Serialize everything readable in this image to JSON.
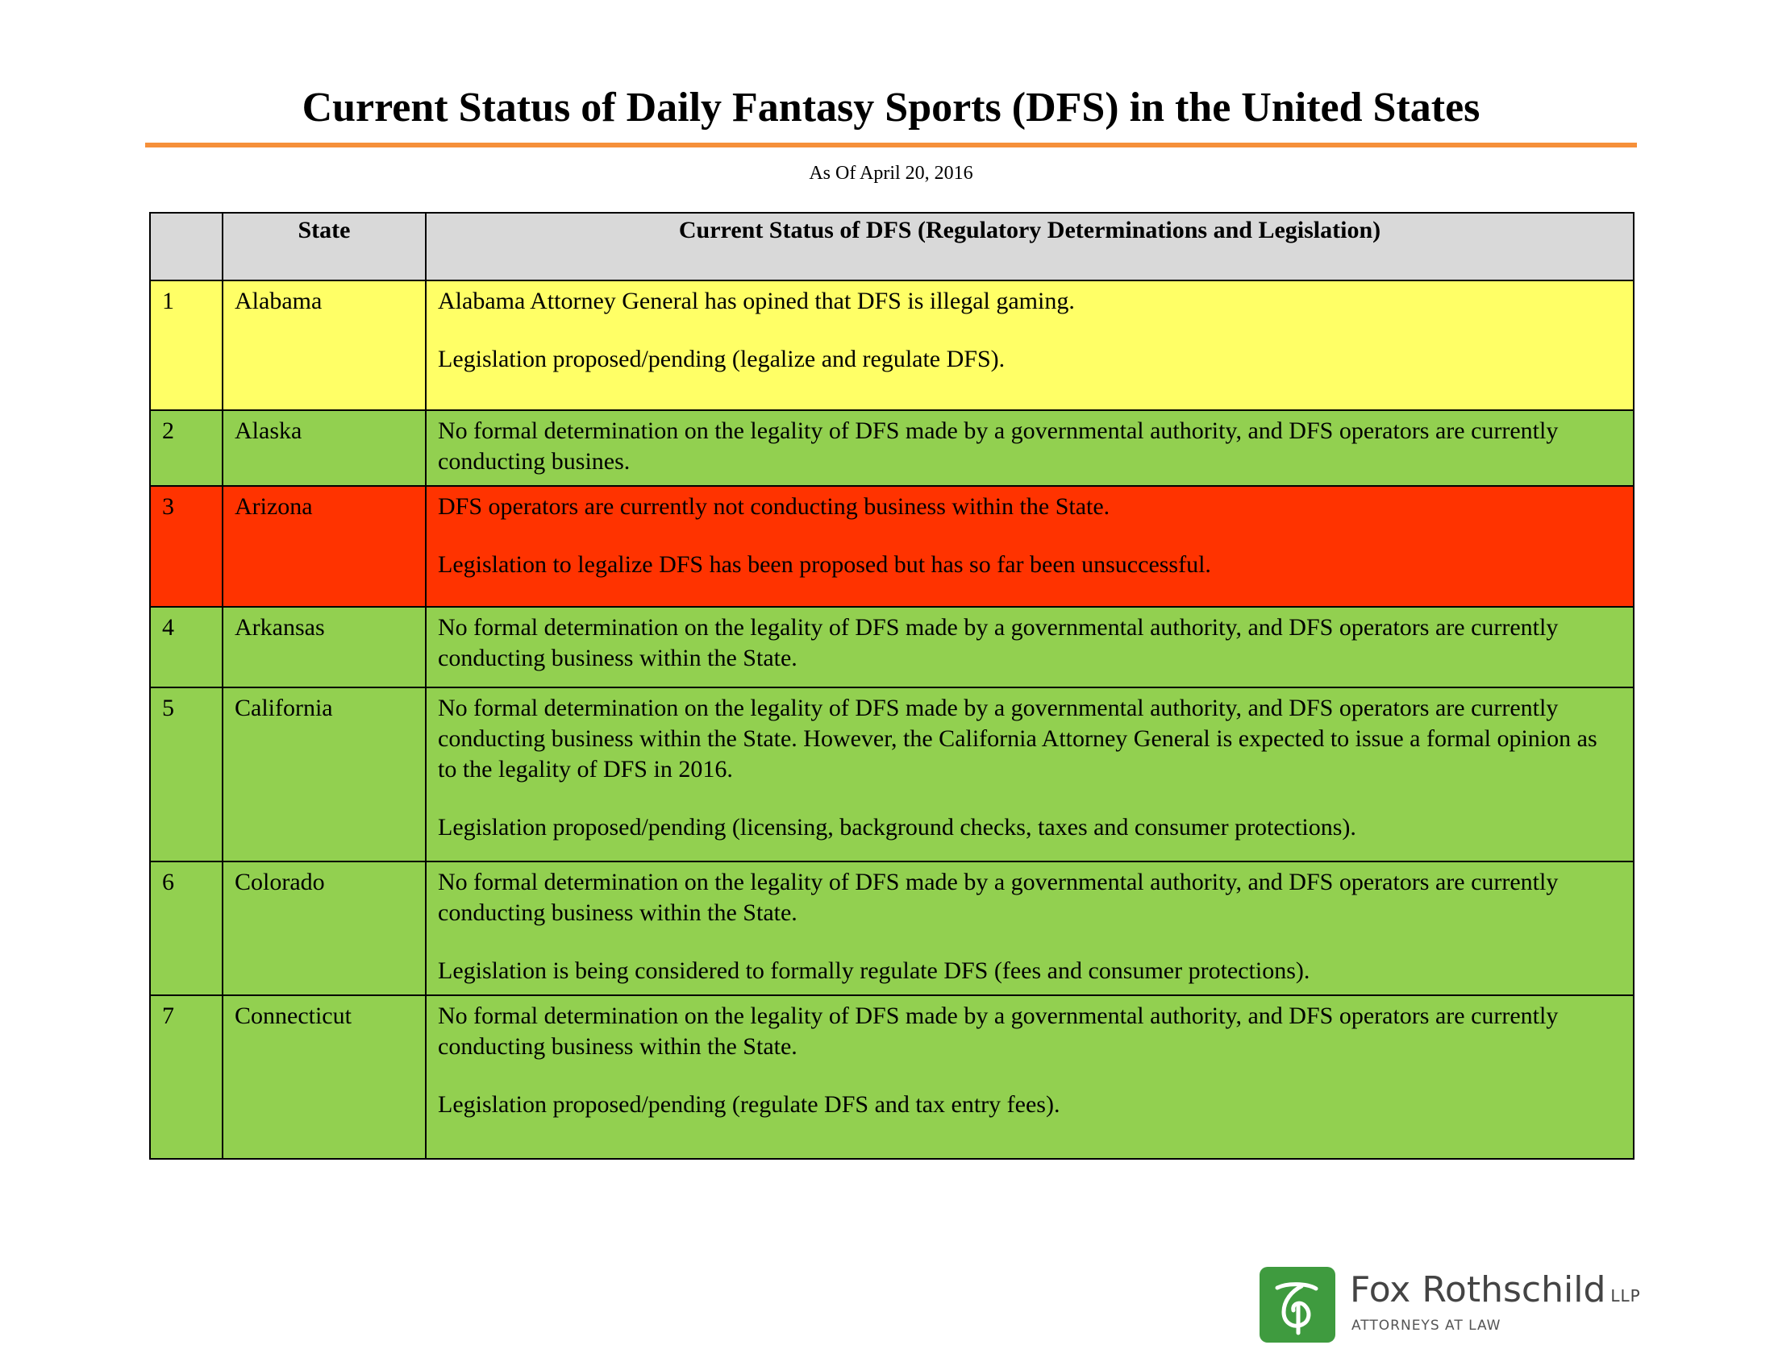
{
  "document": {
    "title": "Current Status of Daily Fantasy Sports (DFS) in the United States",
    "subtitle": "As Of April 20, 2016"
  },
  "colors": {
    "accent_rule": "#f6903a",
    "header_bg": "#d9d9d9",
    "yellow": "#ffff66",
    "green": "#92d050",
    "red": "#ff3300",
    "logo_green": "#3f9b3f"
  },
  "table": {
    "headers": [
      "",
      "State",
      "Current Status of DFS (Regulatory Determinations and Legislation)"
    ],
    "rows": [
      {
        "num": "1",
        "state": "Alabama",
        "color": "yellow",
        "paras": [
          "Alabama Attorney General has opined that DFS is illegal gaming.",
          "Legislation proposed/pending (legalize and regulate DFS)."
        ]
      },
      {
        "num": "2",
        "state": "Alaska",
        "color": "green",
        "paras": [
          "No formal determination on the legality of DFS made by a governmental authority, and DFS operators are currently conducting busines."
        ]
      },
      {
        "num": "3",
        "state": "Arizona",
        "color": "red",
        "paras": [
          "DFS operators are currently not conducting business within the State.",
          "Legislation to legalize DFS has been proposed but has so far been unsuccessful."
        ]
      },
      {
        "num": "4",
        "state": "Arkansas",
        "color": "green",
        "paras": [
          "No formal determination on the legality of DFS made by a governmental authority, and DFS operators are currently conducting business within the State."
        ]
      },
      {
        "num": "5",
        "state": "California",
        "color": "green",
        "paras": [
          "No formal determination on the legality of DFS made by a governmental authority, and DFS operators are currently conducting business within the State.  However, the California Attorney General is expected to issue a formal opinion as to the legality of DFS in 2016.",
          "Legislation proposed/pending (licensing, background checks, taxes and consumer protections)."
        ]
      },
      {
        "num": "6",
        "state": "Colorado",
        "color": "green",
        "paras": [
          "No formal determination on the legality of DFS made by a governmental authority, and DFS operators are currently conducting business within the State.",
          "Legislation is being considered to formally regulate DFS (fees and consumer protections)."
        ]
      },
      {
        "num": "7",
        "state": "Connecticut",
        "color": "green",
        "paras": [
          "No formal determination on the legality of DFS made by a governmental authority, and DFS operators are currently conducting business within the State.",
          "Legislation proposed/pending (regulate DFS and tax entry fees)."
        ]
      }
    ]
  },
  "logo": {
    "name": "Fox Rothschild",
    "suffix": "LLP",
    "tagline": "ATTORNEYS AT LAW",
    "icon": "fox-rothschild-logo-icon"
  }
}
